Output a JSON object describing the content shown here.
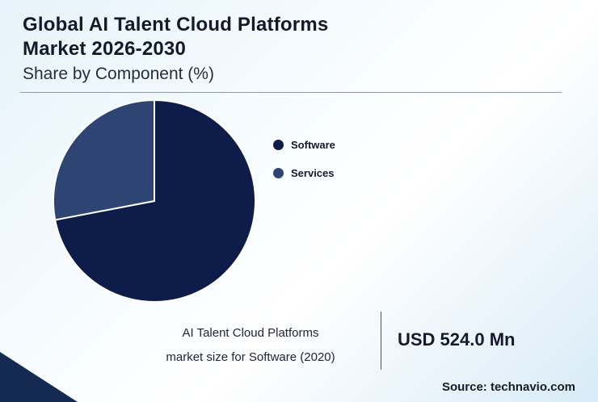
{
  "header": {
    "title_line1": "Global AI Talent Cloud Platforms",
    "title_line2": "Market 2026-2030",
    "subtitle": "Share by Component (%)"
  },
  "chart_data": {
    "type": "pie",
    "title": "Global AI Talent Cloud Platforms Market 2026-2030 — Share by Component (%)",
    "categories": [
      "Software",
      "Services"
    ],
    "values": [
      72,
      28
    ],
    "colors": [
      "#0e1c4a",
      "#2e4573"
    ],
    "legend_position": "right",
    "slice_border_color": "#ffffff"
  },
  "legend": {
    "items": [
      {
        "label": "Software",
        "color": "#0e1c4a"
      },
      {
        "label": "Services",
        "color": "#2e4573"
      }
    ]
  },
  "footer": {
    "caption_line1": "AI Talent Cloud Platforms",
    "caption_line2": "market size for Software (2020)",
    "value": "USD 524.0 Mn",
    "source": "Source: technavio.com"
  },
  "colors": {
    "corner_triangle": "#142a52",
    "background_tint": "#e6f3fa"
  }
}
